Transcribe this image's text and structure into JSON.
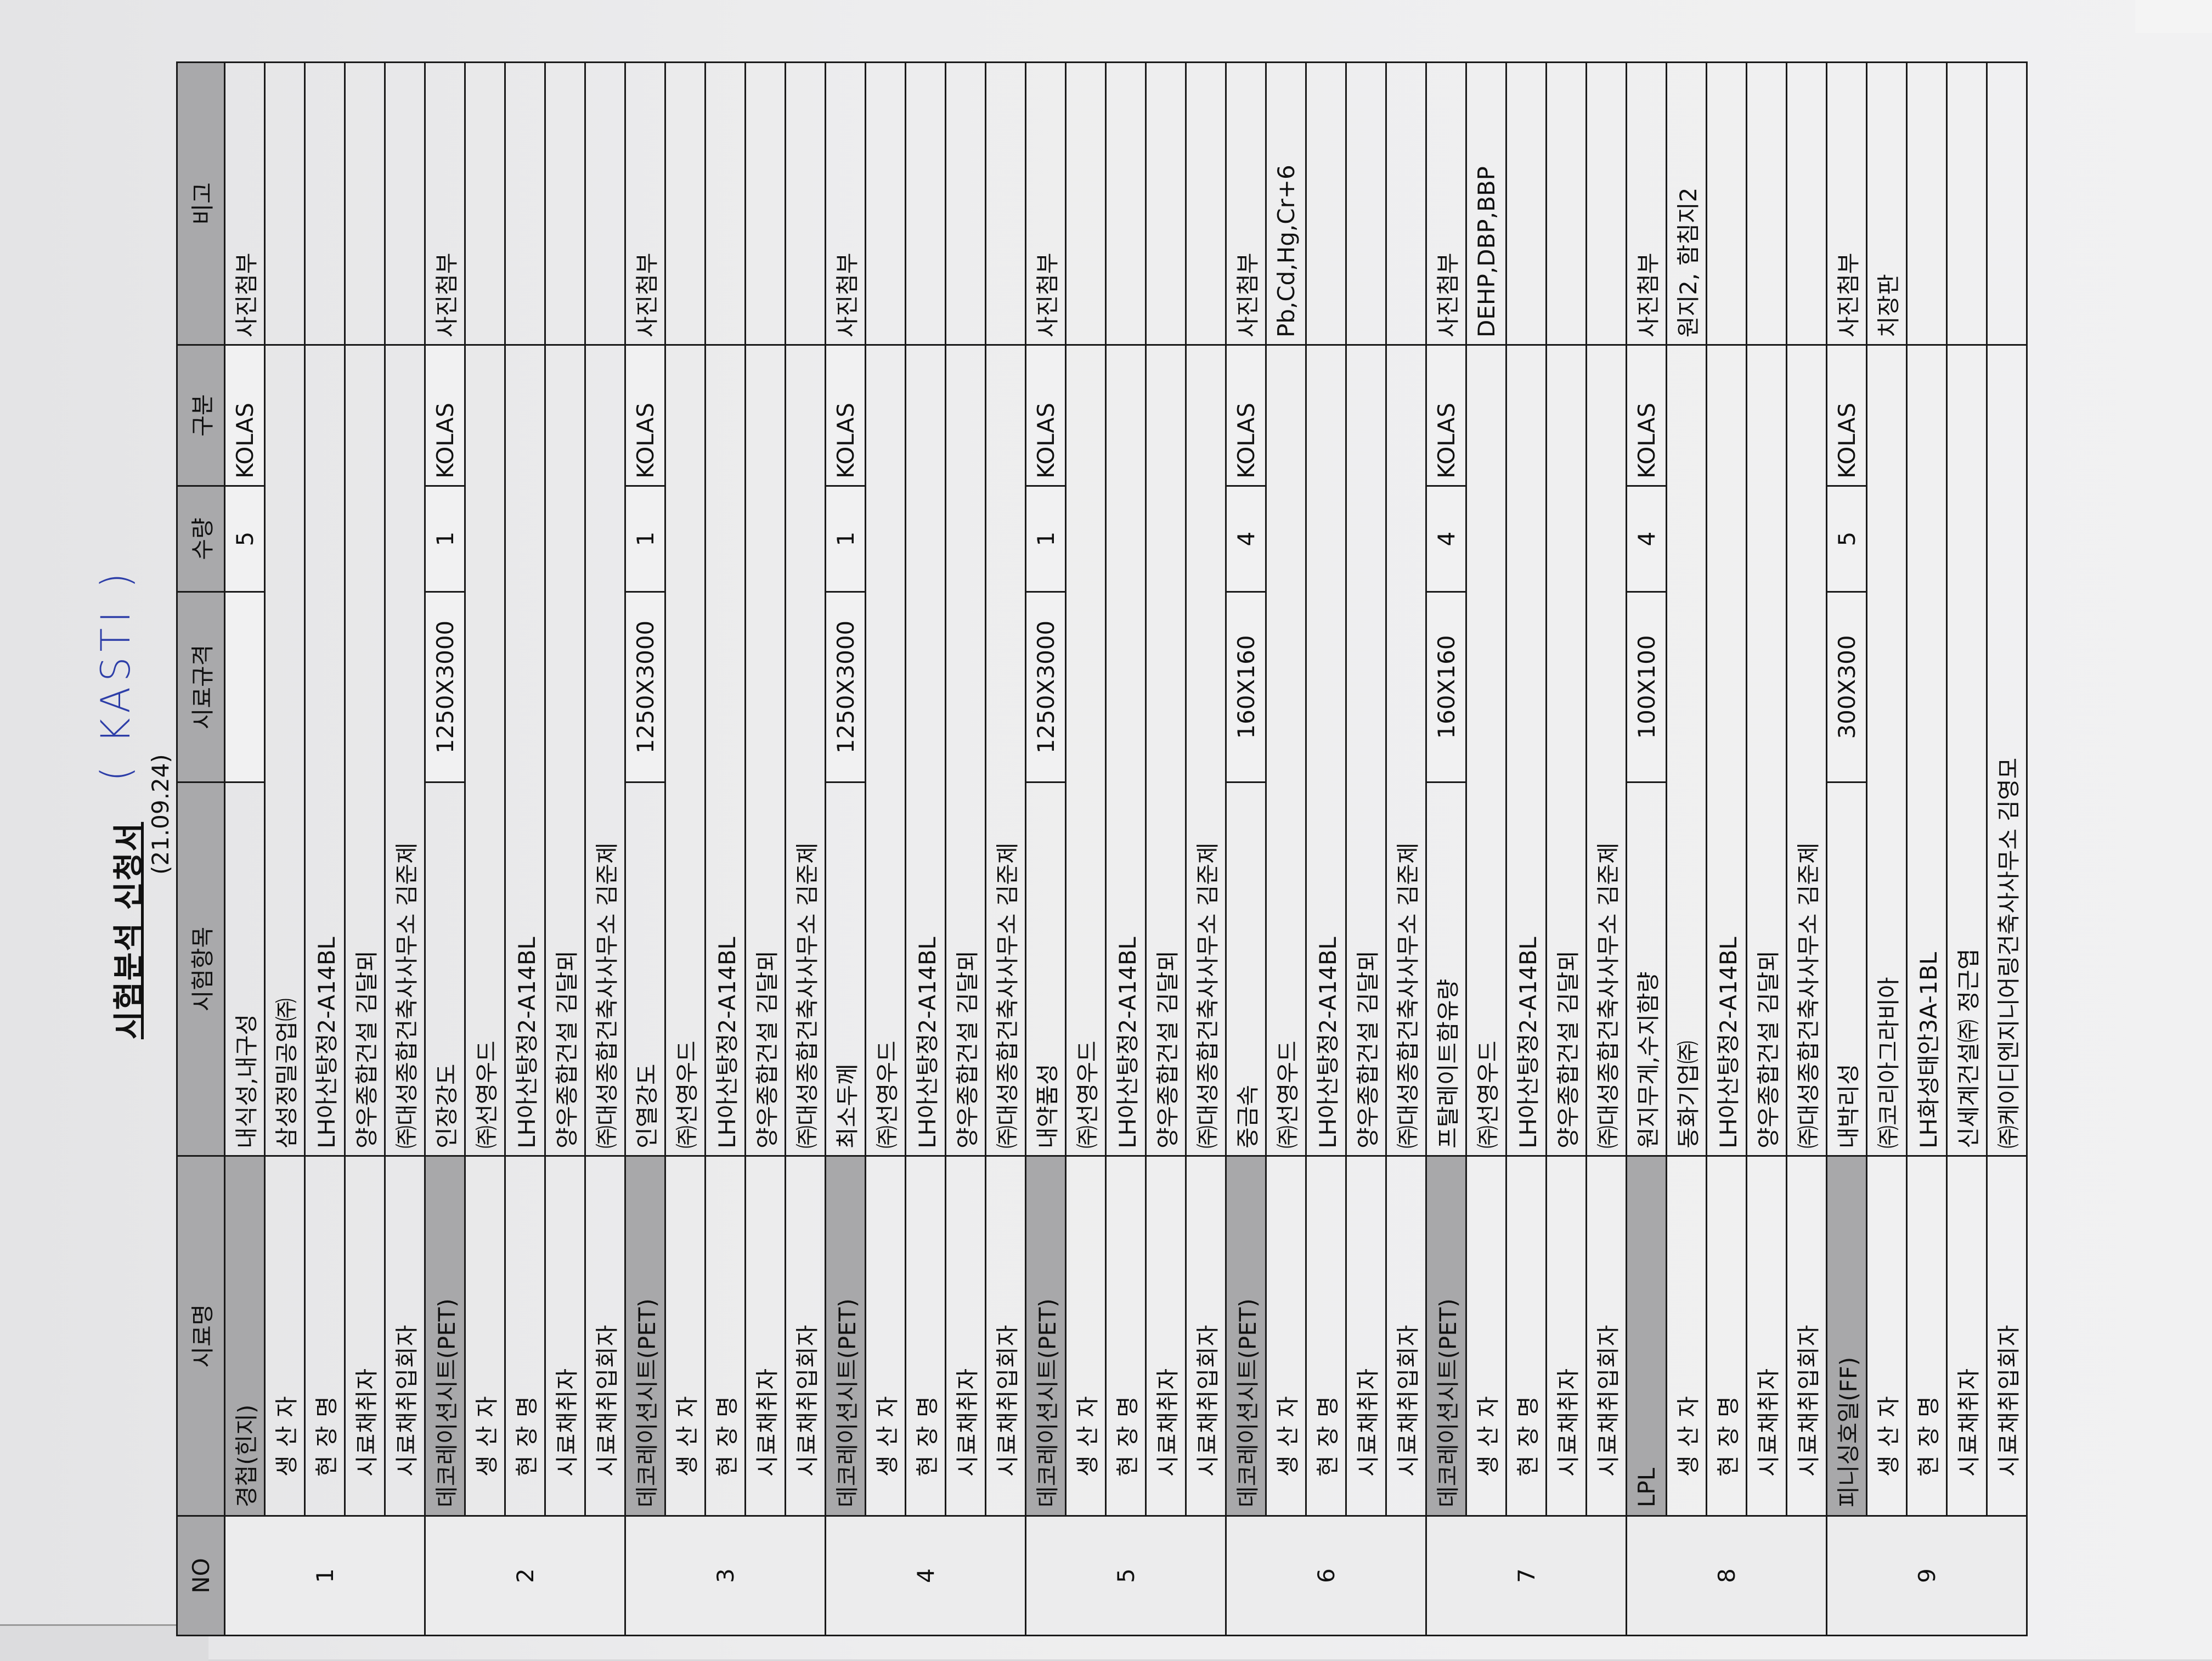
{
  "document": {
    "title": "시험분석 신청서",
    "handwritten_tag": "( KASTI )",
    "date": "(21.09.24)"
  },
  "table": {
    "headers": [
      "NO",
      "시료명",
      "시험항목",
      "시료규격",
      "수량",
      "구분",
      "비고"
    ],
    "sub_labels": [
      "생 산 자",
      "현 장 명",
      "시료채취자",
      "시료채취입회자"
    ],
    "items": [
      {
        "no": "1",
        "name": "경첩(힌지)",
        "tests": [
          "내식성,내구성",
          "삼성정밀공업㈜",
          "LH아산탕정2-A14BL",
          "양우종합건설 김달뫼",
          "㈜대성종합건축사사무소 김준제"
        ],
        "spec": "",
        "qty": "5",
        "category": "KOLAS",
        "notes": [
          "사진첨부",
          "",
          "",
          "",
          ""
        ]
      },
      {
        "no": "2",
        "name": "데코레이션시트(PET)",
        "tests": [
          "인장강도",
          "㈜선영우드",
          "LH아산탕정2-A14BL",
          "양우종합건설 김달뫼",
          "㈜대성종합건축사사무소 김준제"
        ],
        "spec": "1250X3000",
        "qty": "1",
        "category": "KOLAS",
        "notes": [
          "사진첨부",
          "",
          "",
          "",
          ""
        ]
      },
      {
        "no": "3",
        "name": "데코레이션시트(PET)",
        "tests": [
          "인열강도",
          "㈜선영우드",
          "LH아산탕정2-A14BL",
          "양우종합건설 김달뫼",
          "㈜대성종합건축사사무소 김준제"
        ],
        "spec": "1250X3000",
        "qty": "1",
        "category": "KOLAS",
        "notes": [
          "사진첨부",
          "",
          "",
          "",
          ""
        ]
      },
      {
        "no": "4",
        "name": "데코레이션시트(PET)",
        "tests": [
          "최소두께",
          "㈜선영우드",
          "LH아산탕정2-A14BL",
          "양우종합건설 김달뫼",
          "㈜대성종합건축사사무소 김준제"
        ],
        "spec": "1250X3000",
        "qty": "1",
        "category": "KOLAS",
        "notes": [
          "사진첨부",
          "",
          "",
          "",
          ""
        ]
      },
      {
        "no": "5",
        "name": "데코레이션시트(PET)",
        "tests": [
          "내약품성",
          "㈜선영우드",
          "LH아산탕정2-A14BL",
          "양우종합건설 김달뫼",
          "㈜대성종합건축사사무소 김준제"
        ],
        "spec": "1250X3000",
        "qty": "1",
        "category": "KOLAS",
        "notes": [
          "사진첨부",
          "",
          "",
          "",
          ""
        ]
      },
      {
        "no": "6",
        "name": "데코레이션시트(PET)",
        "tests": [
          "중금속",
          "㈜선영우드",
          "LH아산탕정2-A14BL",
          "양우종합건설 김달뫼",
          "㈜대성종합건축사사무소 김준제"
        ],
        "spec": "160X160",
        "qty": "4",
        "category": "KOLAS",
        "notes": [
          "사진첨부",
          "Pb,Cd,Hg,Cr+6",
          "",
          "",
          ""
        ]
      },
      {
        "no": "7",
        "name": "데코레이션시트(PET)",
        "tests": [
          "프탈레이트함유량",
          "㈜선영우드",
          "LH아산탕정2-A14BL",
          "양우종합건설 김달뫼",
          "㈜대성종합건축사사무소 김준제"
        ],
        "spec": "160X160",
        "qty": "4",
        "category": "KOLAS",
        "notes": [
          "사진첨부",
          "DEHP,DBP,BBP",
          "",
          "",
          ""
        ]
      },
      {
        "no": "8",
        "name": "LPL",
        "tests": [
          "원지무게,수지함량",
          "동화기업㈜",
          "LH아산탕정2-A14BL",
          "양우종합건설 김달뫼",
          "㈜대성종합건축사사무소 김준제"
        ],
        "spec": "100X100",
        "qty": "4",
        "category": "KOLAS",
        "notes": [
          "사진첨부",
          "원지2, 함침지2",
          "",
          "",
          ""
        ]
      },
      {
        "no": "9",
        "name": "피니싱호일(FF)",
        "tests": [
          "내박리성",
          "㈜코리아그라비아",
          "LH화성태안3A-1BL",
          "신세계건설㈜ 정근엽",
          "㈜케이디엔지니어링건축사사무소 김영모"
        ],
        "spec": "300X300",
        "qty": "5",
        "category": "KOLAS",
        "notes": [
          "사진첨부",
          "치장판",
          "",
          "",
          ""
        ]
      }
    ]
  },
  "colors": {
    "header_fill": "#a9a9ab",
    "handwriting": "#2d3ea8",
    "paper": "#ededee"
  }
}
